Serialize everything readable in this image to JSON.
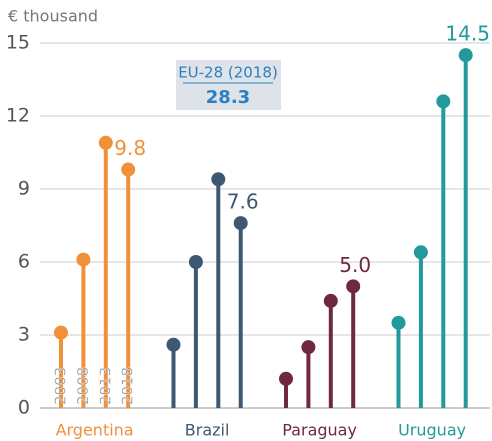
{
  "chart_data": {
    "type": "lollipop",
    "y_axis_label": "€ thousand",
    "categories": [
      "2003",
      "2008",
      "2013",
      "2018"
    ],
    "series": [
      {
        "name": "Argentina",
        "color": "#f0913a",
        "values": [
          3.1,
          6.1,
          10.9,
          9.8
        ],
        "value_labels": [
          null,
          null,
          null,
          "9.8"
        ]
      },
      {
        "name": "Brazil",
        "color": "#3e5873",
        "values": [
          2.6,
          6.0,
          9.4,
          7.6
        ],
        "value_labels": [
          null,
          null,
          null,
          "7.6"
        ]
      },
      {
        "name": "Paraguay",
        "color": "#6e2a3c",
        "values": [
          1.2,
          2.5,
          4.4,
          5.0
        ],
        "value_labels": [
          null,
          null,
          null,
          "5.0"
        ]
      },
      {
        "name": "Uruguay",
        "color": "#22999a",
        "values": [
          3.5,
          6.4,
          12.6,
          14.5
        ],
        "value_labels": [
          null,
          null,
          null,
          "14.5"
        ]
      }
    ],
    "annotation": {
      "label": "EU-28 (2018)",
      "value": 28.3
    },
    "ylim": [
      0,
      15
    ],
    "yticks": [
      0,
      3,
      6,
      9,
      12,
      15
    ],
    "grid": true
  }
}
